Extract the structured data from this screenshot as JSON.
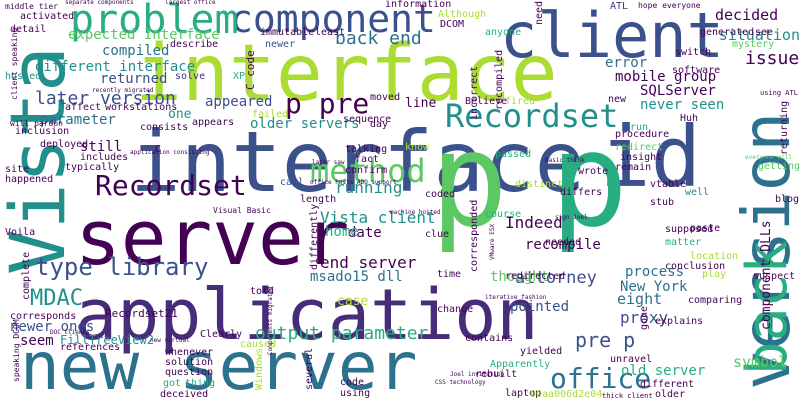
{
  "palette": [
    "#440154",
    "#472c7a",
    "#3b518b",
    "#2c718e",
    "#21908d",
    "#27ad81",
    "#5cc863",
    "#aadc32",
    "#fde725"
  ],
  "words": [
    {
      "text": "interface",
      "color": "#aadc32"
    },
    {
      "text": "interface",
      "color": "#3b518b"
    },
    {
      "text": "id",
      "color": "#3b518b"
    },
    {
      "text": "p",
      "color": "#5cc863"
    },
    {
      "text": "p",
      "color": "#27ad81"
    },
    {
      "text": "application",
      "color": "#472c7a"
    },
    {
      "text": "server",
      "color": "#440154"
    },
    {
      "text": "new server",
      "color": "#2c718e"
    },
    {
      "text": "client",
      "color": "#3b518b"
    },
    {
      "text": "component",
      "color": "#3b518b"
    },
    {
      "text": "problem",
      "color": "#27ad81"
    },
    {
      "text": "Vista",
      "color": "#21908d"
    },
    {
      "text": "version",
      "color": "#2c718e"
    },
    {
      "text": "back",
      "color": "#27ad81"
    },
    {
      "text": "Recordset",
      "color": "#21908d"
    },
    {
      "text": "Recordset",
      "color": "#440154"
    },
    {
      "text": "method",
      "color": "#5cc863"
    },
    {
      "text": "p pre",
      "color": "#440154"
    },
    {
      "text": "type library",
      "color": "#3b518b"
    },
    {
      "text": "office",
      "color": "#2c718e"
    },
    {
      "text": "MDAC",
      "color": "#21908d"
    },
    {
      "text": "back end",
      "color": "#2c718e"
    },
    {
      "text": "later version",
      "color": "#3b518b"
    },
    {
      "text": "output parameter",
      "color": "#27ad81"
    },
    {
      "text": "pre p",
      "color": "#3b518b"
    },
    {
      "text": "attorney",
      "color": "#3b518b"
    },
    {
      "text": "Vista client",
      "color": "#21908d"
    },
    {
      "text": "issue",
      "color": "#440154"
    },
    {
      "text": "situation",
      "color": "#21908d"
    },
    {
      "text": "decided",
      "color": "#440154"
    },
    {
      "text": "end server",
      "color": "#440154"
    },
    {
      "text": "running",
      "color": "#21908d"
    },
    {
      "text": "Indeed",
      "color": "#440154"
    },
    {
      "text": "proxy",
      "color": "#3b518b"
    },
    {
      "text": "symbol",
      "color": "#5cc863"
    },
    {
      "text": "eight",
      "color": "#2c718e"
    },
    {
      "text": "old server",
      "color": "#27ad81"
    },
    {
      "text": "expected Interface",
      "color": "#5cc863"
    },
    {
      "text": "different interface",
      "color": "#21908d"
    },
    {
      "text": "returned",
      "color": "#3b518b"
    },
    {
      "text": "compiled",
      "color": "#2c718e"
    },
    {
      "text": "parameter",
      "color": "#2c718e"
    },
    {
      "text": "still",
      "color": "#440154"
    },
    {
      "text": "appeared",
      "color": "#3b518b"
    },
    {
      "text": "older servers",
      "color": "#21908d"
    },
    {
      "text": "never seen",
      "color": "#21908d"
    },
    {
      "text": "mobile group",
      "color": "#440154"
    },
    {
      "text": "SQLServer",
      "color": "#440154"
    },
    {
      "text": "error",
      "color": "#2c718e"
    },
    {
      "text": "recompile",
      "color": "#440154"
    },
    {
      "text": "date",
      "color": "#440154"
    },
    {
      "text": "home",
      "color": "#27ad81"
    },
    {
      "text": "msado15 dll",
      "color": "#2c718e"
    },
    {
      "text": "process",
      "color": "#2c718e"
    },
    {
      "text": "New York",
      "color": "#2c718e"
    },
    {
      "text": "thought",
      "color": "#5cc863"
    },
    {
      "text": "pointed",
      "color": "#3b518b"
    },
    {
      "text": "newer ones",
      "color": "#3b518b"
    },
    {
      "text": "seem",
      "color": "#440154"
    },
    {
      "text": "line",
      "color": "#440154"
    },
    {
      "text": "one",
      "color": "#21908d"
    },
    {
      "text": "case",
      "color": "#aadc32"
    },
    {
      "text": "component DLLs",
      "color": "#440154"
    },
    {
      "text": "FillTreeView2",
      "color": "#21908d"
    },
    {
      "text": "Recordset21",
      "color": "#440154"
    },
    {
      "text": "moved",
      "color": "#440154"
    },
    {
      "text": "C code",
      "color": "#440154"
    },
    {
      "text": "XP",
      "color": "#27ad81"
    },
    {
      "text": "solve",
      "color": "#472c7a"
    },
    {
      "text": "workstations",
      "color": "#440154"
    },
    {
      "text": "affect",
      "color": "#440154"
    },
    {
      "text": "consists",
      "color": "#440154"
    },
    {
      "text": "includes",
      "color": "#440154"
    },
    {
      "text": "typically",
      "color": "#440154"
    },
    {
      "text": "deployed",
      "color": "#440154"
    },
    {
      "text": "inclusion",
      "color": "#440154"
    },
    {
      "text": "hosted",
      "color": "#21908d"
    },
    {
      "text": "detail",
      "color": "#440154"
    },
    {
      "text": "activated",
      "color": "#440154"
    },
    {
      "text": "information",
      "color": "#440154"
    },
    {
      "text": "newer",
      "color": "#3b518b"
    },
    {
      "text": "describe",
      "color": "#440154"
    },
    {
      "text": "immutable",
      "color": "#440154"
    },
    {
      "text": "least",
      "color": "#440154"
    },
    {
      "text": "DCOM",
      "color": "#440154"
    },
    {
      "text": "Although",
      "color": "#aadc32"
    },
    {
      "text": "anyone",
      "color": "#27ad81"
    },
    {
      "text": "need",
      "color": "#440154"
    },
    {
      "text": "ATL",
      "color": "#472c7a"
    },
    {
      "text": "hope everyone",
      "color": "#440154"
    },
    {
      "text": "generated",
      "color": "#440154"
    },
    {
      "text": "see",
      "color": "#440154"
    },
    {
      "text": "switch",
      "color": "#440154"
    },
    {
      "text": "software",
      "color": "#440154"
    },
    {
      "text": "mystery",
      "color": "#5cc863"
    },
    {
      "text": "Huh",
      "color": "#440154"
    },
    {
      "text": "run",
      "color": "#27ad81"
    },
    {
      "text": "procedure",
      "color": "#440154"
    },
    {
      "text": "insight",
      "color": "#440154"
    },
    {
      "text": "remain",
      "color": "#440154"
    },
    {
      "text": "redirect",
      "color": "#5cc863"
    },
    {
      "text": "passed",
      "color": "#27ad81"
    },
    {
      "text": "wrote",
      "color": "#440154"
    },
    {
      "text": "fired",
      "color": "#aadc32"
    },
    {
      "text": "Believe",
      "color": "#440154"
    },
    {
      "text": "talking",
      "color": "#440154"
    },
    {
      "text": "fact",
      "color": "#440154"
    },
    {
      "text": "confirm",
      "color": "#440154"
    },
    {
      "text": "call",
      "color": "#3b518b"
    },
    {
      "text": "distinct",
      "color": "#aadc32"
    },
    {
      "text": "differs",
      "color": "#440154"
    },
    {
      "text": "coded",
      "color": "#440154"
    },
    {
      "text": "clue",
      "color": "#440154"
    },
    {
      "text": "stub",
      "color": "#440154"
    },
    {
      "text": "vtable",
      "color": "#440154"
    },
    {
      "text": "well",
      "color": "#21908d"
    },
    {
      "text": "blog",
      "color": "#440154"
    },
    {
      "text": "getting",
      "color": "#5cc863"
    },
    {
      "text": "Voila",
      "color": "#440154"
    },
    {
      "text": "differently",
      "color": "#440154"
    },
    {
      "text": "length",
      "color": "#440154"
    },
    {
      "text": "course",
      "color": "#27ad81"
    },
    {
      "text": "supposed",
      "color": "#440154"
    },
    {
      "text": "matter",
      "color": "#27ad81"
    },
    {
      "text": "location",
      "color": "#aadc32"
    },
    {
      "text": "conclusion",
      "color": "#440154"
    },
    {
      "text": "paste",
      "color": "#440154"
    },
    {
      "text": "play",
      "color": "#aadc32"
    },
    {
      "text": "needed",
      "color": "#440154"
    },
    {
      "text": "redirected",
      "color": "#440154"
    },
    {
      "text": "time",
      "color": "#440154"
    },
    {
      "text": "change",
      "color": "#440154"
    },
    {
      "text": "told",
      "color": "#440154"
    },
    {
      "text": "caused",
      "color": "#aadc32"
    },
    {
      "text": "Clearly",
      "color": "#440154"
    },
    {
      "text": "whenever",
      "color": "#440154"
    },
    {
      "text": "solution",
      "color": "#440154"
    },
    {
      "text": "question",
      "color": "#440154"
    },
    {
      "text": "got",
      "color": "#27ad81"
    },
    {
      "text": "thing",
      "color": "#27ad81"
    },
    {
      "text": "deceived",
      "color": "#440154"
    },
    {
      "text": "Windows",
      "color": "#aadc32"
    },
    {
      "text": "several",
      "color": "#440154"
    },
    {
      "text": "code",
      "color": "#440154"
    },
    {
      "text": "using",
      "color": "#440154"
    },
    {
      "text": "contains",
      "color": "#440154"
    },
    {
      "text": "Apparently",
      "color": "#27ad81"
    },
    {
      "text": "rebuilt",
      "color": "#440154"
    },
    {
      "text": "yielded",
      "color": "#440154"
    },
    {
      "text": "laptop",
      "color": "#440154"
    },
    {
      "text": "unravel",
      "color": "#440154"
    },
    {
      "text": "different",
      "color": "#440154"
    },
    {
      "text": "older",
      "color": "#440154"
    },
    {
      "text": "explains",
      "color": "#440154"
    },
    {
      "text": "gone",
      "color": "#440154"
    },
    {
      "text": "comparing",
      "color": "#440154"
    },
    {
      "text": "suspect",
      "color": "#440154"
    },
    {
      "text": "references",
      "color": "#440154"
    },
    {
      "text": "corresponds",
      "color": "#440154"
    },
    {
      "text": "complete",
      "color": "#440154"
    },
    {
      "text": "happened",
      "color": "#440154"
    },
    {
      "text": "site",
      "color": "#440154"
    },
    {
      "text": "middle tier",
      "color": "#440154"
    },
    {
      "text": "will pardon",
      "color": "#440154"
    },
    {
      "text": "incorrect",
      "color": "#440154"
    },
    {
      "text": "recompiled",
      "color": "#440154"
    },
    {
      "text": "corresponded",
      "color": "#440154"
    },
    {
      "text": "returning",
      "color": "#440154"
    },
    {
      "text": "sequence",
      "color": "#440154"
    },
    {
      "text": "day",
      "color": "#440154"
    },
    {
      "text": "know",
      "color": "#aadc32"
    },
    {
      "text": "new",
      "color": "#440154"
    },
    {
      "text": "failed",
      "color": "#aadc32"
    },
    {
      "text": "appears",
      "color": "#440154"
    },
    {
      "text": "C",
      "color": "#440154"
    },
    {
      "text": "Visual Basic",
      "color": "#440154"
    },
    {
      "text": "client speaking",
      "color": "#440154"
    },
    {
      "text": "speaking DCOM",
      "color": "#440154"
    },
    {
      "text": "separate components",
      "color": "#440154"
    },
    {
      "text": "largest office",
      "color": "#440154"
    },
    {
      "text": "recently migrated",
      "color": "#440154"
    },
    {
      "text": "application consisting",
      "color": "#440154"
    },
    {
      "text": "later saw",
      "color": "#440154"
    },
    {
      "text": "office hosts",
      "color": "#440154"
    },
    {
      "text": "ADO support",
      "color": "#440154"
    },
    {
      "text": "Basic think",
      "color": "#440154"
    },
    {
      "text": "machine hosted",
      "color": "#440154"
    },
    {
      "text": "sign Joel",
      "color": "#440154"
    },
    {
      "text": "iterative fashion",
      "color": "#440154"
    },
    {
      "text": "Joel invitation",
      "color": "#440154"
    },
    {
      "text": "CSS technology",
      "color": "#440154"
    },
    {
      "text": "thick client",
      "color": "#440154"
    },
    {
      "text": "00aa006d2e04",
      "color": "#aadc32"
    },
    {
      "text": "new virtual",
      "color": "#440154"
    },
    {
      "text": "everyone will",
      "color": "#5cc863"
    },
    {
      "text": "using ATL",
      "color": "#440154"
    },
    {
      "text": "VMware ESX",
      "color": "#440154"
    },
    {
      "text": "DOC clients",
      "color": "#440154"
    },
    {
      "text": "Components migrated",
      "color": "#440154"
    }
  ]
}
